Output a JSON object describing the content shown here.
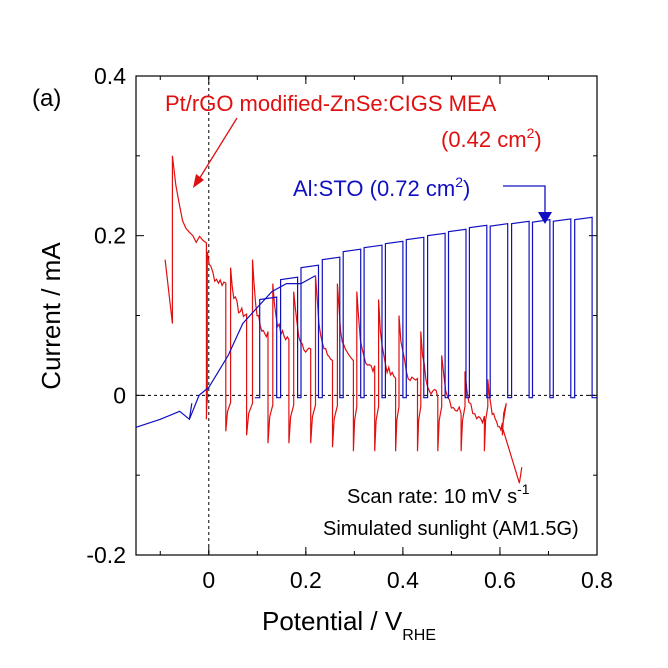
{
  "chart_data": {
    "type": "line",
    "panel_label": "(a)",
    "xlabel_main": "Potential / V",
    "xlabel_sub": "RHE",
    "ylabel": "Current / mA",
    "xlim": [
      -0.15,
      0.8
    ],
    "ylim": [
      -0.2,
      0.4
    ],
    "xticks": [
      {
        "value": 0,
        "label": "0"
      },
      {
        "value": 0.2,
        "label": "0.2"
      },
      {
        "value": 0.4,
        "label": "0.4"
      },
      {
        "value": 0.6,
        "label": "0.6"
      },
      {
        "value": 0.8,
        "label": "0.8"
      }
    ],
    "yticks": [
      {
        "value": -0.2,
        "label": "-0.2"
      },
      {
        "value": 0,
        "label": "0"
      },
      {
        "value": 0.2,
        "label": "0.2"
      },
      {
        "value": 0.4,
        "label": "0.4"
      }
    ],
    "zero_guides": true,
    "annotations": {
      "red_line1": "Pt/rGO modified-ZnSe:CIGS MEA",
      "red_line2_main": "(0.42 cm",
      "red_line2_sup": "2",
      "red_line2_end": ")",
      "blue_main": "Al:STO (0.72 cm",
      "blue_sup": "2",
      "blue_end": ")",
      "scan_main": "Scan rate: 10 mV s",
      "scan_sup": "-1",
      "sunlight": "Simulated sunlight (AM1.5G)"
    },
    "series": [
      {
        "color": "#e01010",
        "annotation_arrow_target": [
          -0.07,
          0.26
        ],
        "start": [
          -0.09,
          0.17
        ],
        "dark_current": 0.0,
        "initial_dark_decay": [
          [
            -0.09,
            0.17
          ],
          [
            -0.075,
            0.09
          ]
        ],
        "pulses": [
          {
            "on": -0.075,
            "off": -0.005,
            "peak": 0.3,
            "plateau": 0.19,
            "undershoot": -0.03
          },
          {
            "on": -0.003,
            "off": 0.035,
            "peak": 0.18,
            "plateau": 0.14,
            "undershoot": -0.045
          },
          {
            "on": 0.045,
            "off": 0.078,
            "peak": 0.16,
            "plateau": 0.1,
            "undershoot": -0.05
          },
          {
            "on": 0.09,
            "off": 0.122,
            "peak": 0.17,
            "plateau": 0.075,
            "undershoot": -0.06
          },
          {
            "on": 0.132,
            "off": 0.165,
            "peak": 0.14,
            "plateau": 0.07,
            "undershoot": -0.06
          },
          {
            "on": 0.175,
            "off": 0.21,
            "peak": 0.13,
            "plateau": 0.055,
            "undershoot": -0.06
          },
          {
            "on": 0.22,
            "off": 0.255,
            "peak": 0.15,
            "plateau": 0.045,
            "undershoot": -0.065
          },
          {
            "on": 0.265,
            "off": 0.298,
            "peak": 0.14,
            "plateau": 0.04,
            "undershoot": -0.07
          },
          {
            "on": 0.305,
            "off": 0.342,
            "peak": 0.13,
            "plateau": 0.03,
            "undershoot": -0.07
          },
          {
            "on": 0.35,
            "off": 0.385,
            "peak": 0.12,
            "plateau": 0.02,
            "undershoot": -0.07
          },
          {
            "on": 0.392,
            "off": 0.43,
            "peak": 0.1,
            "plateau": 0.015,
            "undershoot": -0.07
          },
          {
            "on": 0.437,
            "off": 0.472,
            "peak": 0.08,
            "plateau": 0.0,
            "undershoot": -0.07
          },
          {
            "on": 0.48,
            "off": 0.52,
            "peak": 0.05,
            "plateau": -0.02,
            "undershoot": -0.07
          },
          {
            "on": 0.528,
            "off": 0.568,
            "peak": 0.03,
            "plateau": -0.03,
            "undershoot": -0.07
          },
          {
            "on": 0.575,
            "off": 0.605,
            "peak": 0.02,
            "plateau": -0.04,
            "undershoot": -0.05
          }
        ],
        "tail": [
          [
            0.605,
            -0.04
          ],
          [
            0.625,
            -0.08
          ],
          [
            0.64,
            -0.11
          ],
          [
            0.645,
            -0.09
          ]
        ]
      },
      {
        "color": "#1010c0",
        "start": [
          -0.15,
          -0.04
        ],
        "dark_baseline": [
          [
            -0.15,
            -0.04
          ],
          [
            -0.1,
            -0.03
          ],
          [
            -0.06,
            -0.02
          ],
          [
            -0.04,
            -0.03
          ]
        ],
        "rise": [
          [
            -0.04,
            -0.03
          ],
          [
            -0.02,
            0.0
          ],
          [
            0.0,
            0.01
          ],
          [
            0.02,
            0.03
          ],
          [
            0.04,
            0.05
          ],
          [
            0.07,
            0.09
          ],
          [
            0.1,
            0.11
          ],
          [
            0.13,
            0.13
          ],
          [
            0.16,
            0.14
          ],
          [
            0.19,
            0.14
          ],
          [
            0.22,
            0.15
          ]
        ],
        "pulses": [
          {
            "on": 0.105,
            "off": 0.14,
            "plateau": 0.12
          },
          {
            "on": 0.148,
            "off": 0.183,
            "plateau": 0.145
          },
          {
            "on": 0.19,
            "off": 0.226,
            "plateau": 0.16
          },
          {
            "on": 0.234,
            "off": 0.27,
            "plateau": 0.17
          },
          {
            "on": 0.277,
            "off": 0.313,
            "plateau": 0.18
          },
          {
            "on": 0.32,
            "off": 0.357,
            "plateau": 0.185
          },
          {
            "on": 0.364,
            "off": 0.4,
            "plateau": 0.19
          },
          {
            "on": 0.407,
            "off": 0.443,
            "plateau": 0.195
          },
          {
            "on": 0.451,
            "off": 0.487,
            "plateau": 0.2
          },
          {
            "on": 0.494,
            "off": 0.53,
            "plateau": 0.205
          },
          {
            "on": 0.537,
            "off": 0.573,
            "plateau": 0.21
          },
          {
            "on": 0.58,
            "off": 0.616,
            "plateau": 0.212
          },
          {
            "on": 0.624,
            "off": 0.66,
            "plateau": 0.215
          },
          {
            "on": 0.667,
            "off": 0.703,
            "plateau": 0.217
          },
          {
            "on": 0.71,
            "off": 0.746,
            "plateau": 0.218
          },
          {
            "on": 0.754,
            "off": 0.79,
            "plateau": 0.22
          }
        ],
        "annotation_arrow_target": [
          0.7,
          0.215
        ]
      }
    ]
  }
}
